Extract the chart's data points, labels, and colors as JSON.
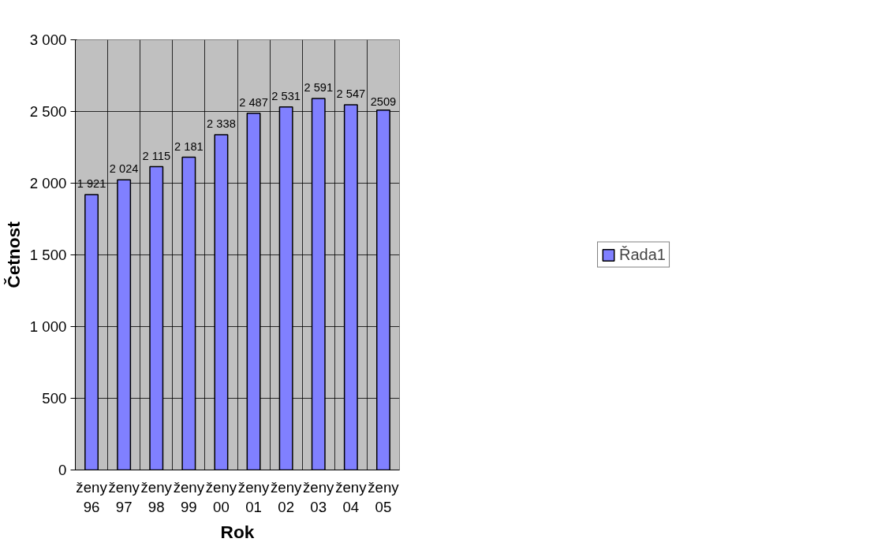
{
  "chart_data": {
    "type": "bar",
    "xlabel": "Rok",
    "ylabel": "Četnost",
    "categories": [
      "ženy 96",
      "ženy 97",
      "ženy 98",
      "ženy 99",
      "ženy 00",
      "ženy 01",
      "ženy 02",
      "ženy 03",
      "ženy 04",
      "ženy 05"
    ],
    "series": [
      {
        "name": "Řada1",
        "color": "#8080ff",
        "values": [
          1921,
          2024,
          2115,
          2181,
          2338,
          2487,
          2531,
          2591,
          2547,
          2509
        ],
        "value_labels": [
          "1 921",
          "2 024",
          "2 115",
          "2 181",
          "2 338",
          "2 487",
          "2 531",
          "2 591",
          "2 547",
          "2509"
        ]
      }
    ],
    "ylim": [
      0,
      3000
    ],
    "yticks": [
      {
        "value": 0,
        "label": "0"
      },
      {
        "value": 500,
        "label": "500"
      },
      {
        "value": 1000,
        "label": "1 000"
      },
      {
        "value": 1500,
        "label": "1 500"
      },
      {
        "value": 2000,
        "label": "2 000"
      },
      {
        "value": 2500,
        "label": "2 500"
      },
      {
        "value": 3000,
        "label": "3 000"
      }
    ],
    "grid": true,
    "legend": "right"
  }
}
